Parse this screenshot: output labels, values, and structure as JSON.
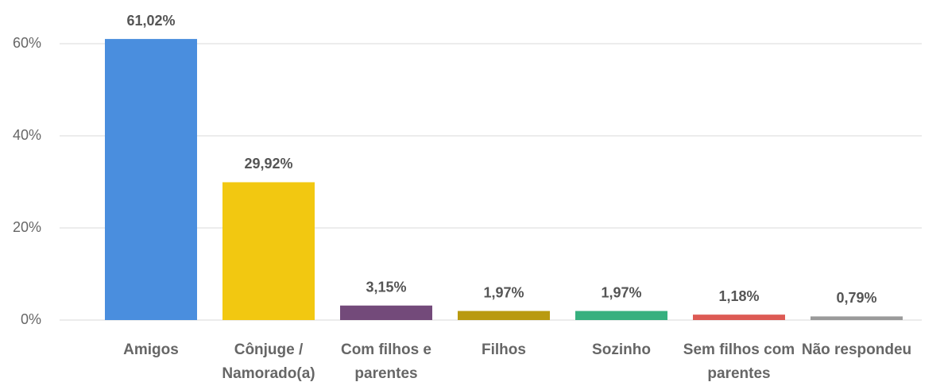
{
  "chart_data": {
    "type": "bar",
    "categories": [
      "Amigos",
      "Cônjuge / Namorado(a)",
      "Com filhos e parentes",
      "Filhos",
      "Sozinho",
      "Sem filhos com parentes",
      "Não respondeu"
    ],
    "values": [
      61.02,
      29.92,
      3.15,
      1.97,
      1.97,
      1.18,
      0.79
    ],
    "value_labels": [
      "61,02%",
      "29,92%",
      "3,15%",
      "1,97%",
      "1,97%",
      "1,18%",
      "0,79%"
    ],
    "colors": [
      "#4a8ede",
      "#f2c811",
      "#734a7a",
      "#b99a10",
      "#37b07f",
      "#dd5a54",
      "#9a9a9a"
    ],
    "ylim": [
      0,
      70
    ],
    "yticks": [
      {
        "value": 0,
        "label": "0%"
      },
      {
        "value": 20,
        "label": "20%"
      },
      {
        "value": 40,
        "label": "40%"
      },
      {
        "value": 60,
        "label": "60%"
      }
    ],
    "grid": true
  }
}
